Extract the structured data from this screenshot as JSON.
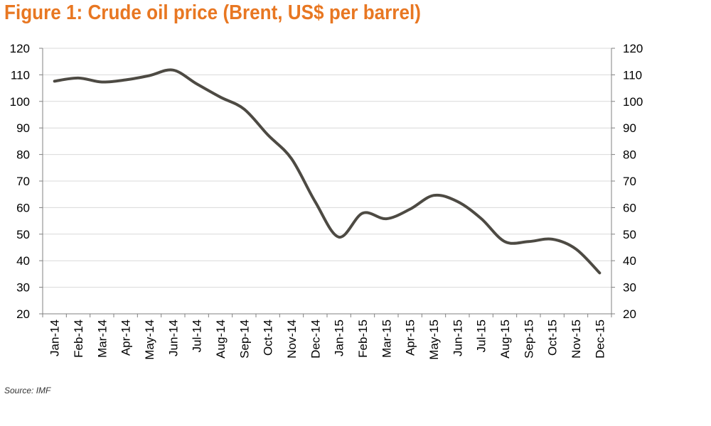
{
  "title": "Figure 1: Crude oil price (Brent, US$ per barrel)",
  "source": "Source: IMF",
  "colors": {
    "title": "#E87722",
    "line": "#4D4A43",
    "grid": "#D9D9D9",
    "axis": "#808080"
  },
  "chart_data": {
    "type": "line",
    "title": "Figure 1: Crude oil price (Brent, US$ per barrel)",
    "xlabel": "",
    "ylabel": "",
    "ylim": [
      20,
      120
    ],
    "y_ticks": [
      20,
      30,
      40,
      50,
      60,
      70,
      80,
      90,
      100,
      110,
      120
    ],
    "secondary_y_axis": true,
    "grid": "horizontal",
    "legend": "none",
    "smooth": true,
    "categories": [
      "Jan-14",
      "Feb-14",
      "Mar-14",
      "Apr-14",
      "May-14",
      "Jun-14",
      "Jul-14",
      "Aug-14",
      "Sep-14",
      "Oct-14",
      "Nov-14",
      "Dec-14",
      "Jan-15",
      "Feb-15",
      "Mar-15",
      "Apr-15",
      "May-15",
      "Jun-15",
      "Jul-15",
      "Aug-15",
      "Sep-15",
      "Oct-15",
      "Nov-15",
      "Dec-15"
    ],
    "series": [
      {
        "values": [
          107.6,
          108.8,
          107.3,
          108.1,
          109.7,
          111.8,
          106.6,
          101.6,
          97.1,
          87.4,
          78.4,
          62.2,
          48.9,
          57.9,
          55.8,
          59.4,
          64.6,
          62.3,
          55.9,
          47.2,
          47.2,
          48.1,
          44.4,
          35.4
        ]
      }
    ]
  }
}
